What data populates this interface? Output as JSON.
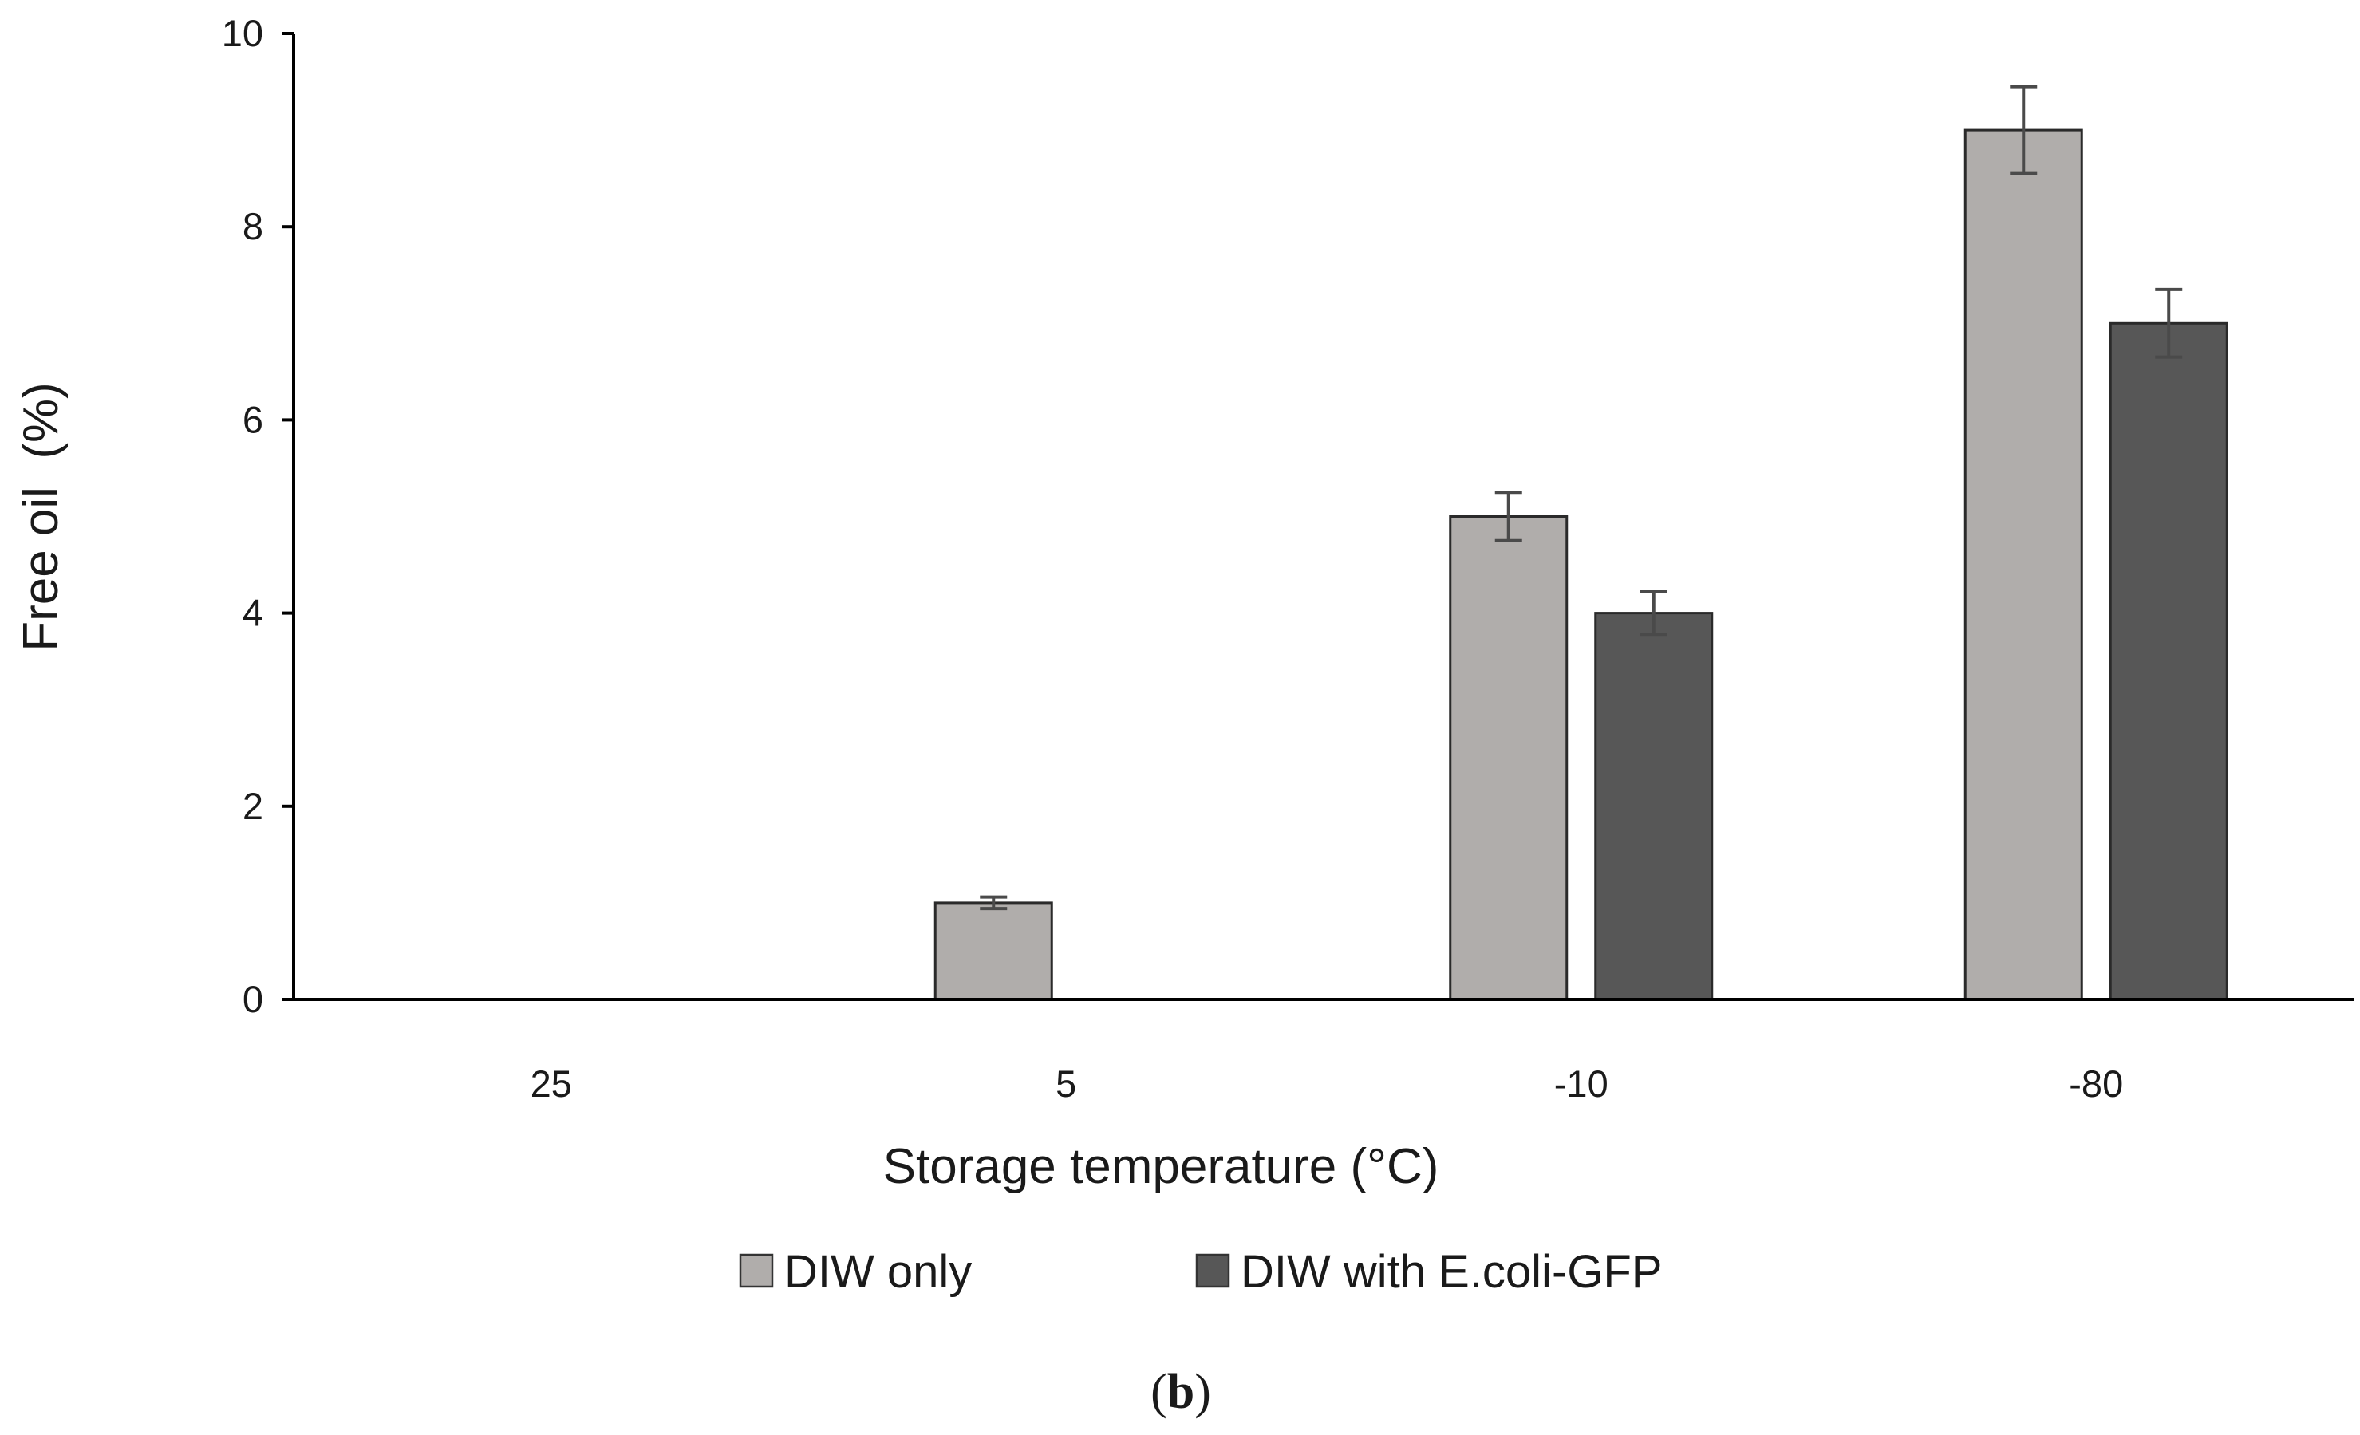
{
  "chart_data": {
    "type": "bar",
    "xlabel": "Storage temperature (°C)",
    "ylabel": "Free oil  (%)",
    "categories": [
      "25",
      "5",
      "-10",
      "-80"
    ],
    "ylim": [
      0,
      10
    ],
    "yticks": [
      "0",
      "2",
      "4",
      "6",
      "8",
      "10"
    ],
    "series": [
      {
        "name": "DIW only",
        "color": "#b0adab",
        "values": [
          0,
          1.0,
          5.0,
          9.0
        ],
        "errors": [
          0,
          0.06,
          0.25,
          0.45
        ]
      },
      {
        "name": "DIW with E.coli-GFP",
        "color": "#575757",
        "values": [
          0,
          0,
          4.0,
          7.0
        ],
        "errors": [
          0,
          0,
          0.22,
          0.35
        ]
      }
    ],
    "grid": false,
    "legend_position": "bottom"
  },
  "panel_label": {
    "open": "(",
    "letter": "b",
    "close": ")"
  }
}
